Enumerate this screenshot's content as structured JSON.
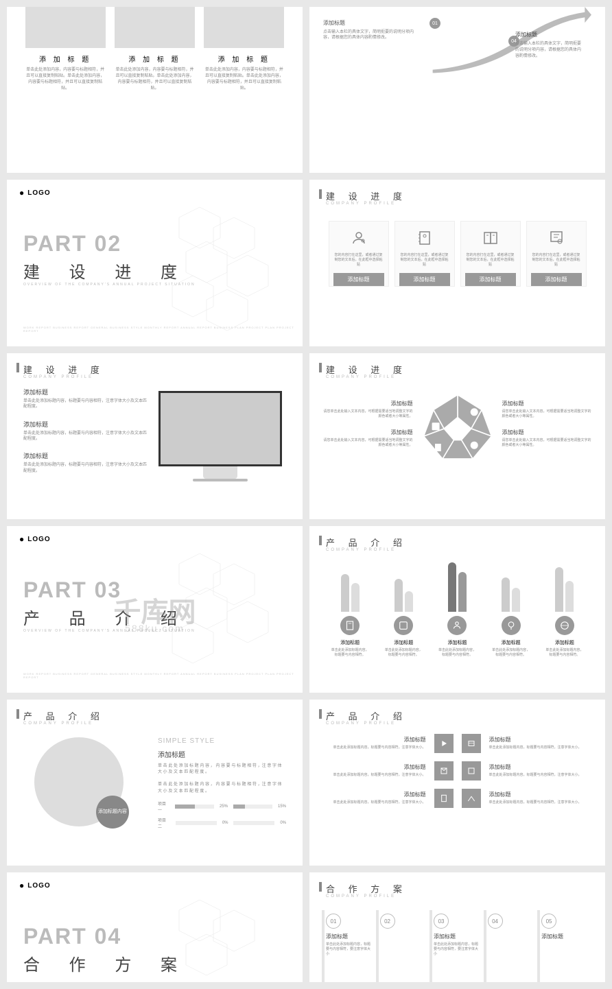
{
  "logo": "LOGO",
  "watermark": "千库网",
  "watermark_sub": "588ku.com",
  "colors": {
    "accent": "#999999",
    "text": "#444444",
    "muted": "#888888",
    "light": "#bbbbbb",
    "bg": "#ffffff"
  },
  "section": {
    "progress": {
      "title": "建 设 进 度",
      "sub": "COMPANY PROFILE"
    },
    "product": {
      "title": "产 品 介 绍",
      "sub": "COMPANY PROFILE"
    },
    "coop": {
      "title": "合 作 方 案",
      "sub": "COMPANY PROFILE"
    }
  },
  "part": {
    "p2": {
      "big": "PART 02",
      "cn": "建 设 进 度"
    },
    "p3": {
      "big": "PART 03",
      "cn": "产 品 介 绍"
    },
    "p4": {
      "big": "PART 04",
      "cn": "合 作 方 案"
    },
    "sub": "OVERVIEW OF THE COMPANY'S ANNUAL PROJECT SITUATION",
    "foot": "WORK REPORT BUSINESS REPORT GENERAL BUSINESS STYLE MONTHLY REPORT ANNUAL REPORT BUSINESS PLAN PROJECT PLAN PROJECT REPORT"
  },
  "s1": {
    "items": [
      {
        "t": "添 加 标 题",
        "d": "单击此处添加内容，内容要与标题相符，并且可以直接复制粘贴。单击此处添加内容，内容要与标题相符，并且可以直接复制粘贴。"
      },
      {
        "t": "添 加 标 题",
        "d": "单击此处添加内容，内容要与标题相符，并且可以直接复制粘贴。单击此处添加内容，内容要与标题相符，并且可以直接复制粘贴。"
      },
      {
        "t": "添 加 标 题",
        "d": "单击此处添加内容，内容要与标题相符，并且可以直接复制粘贴。单击此处添加内容，内容要与标题相符，并且可以直接复制粘贴。"
      }
    ]
  },
  "s2": {
    "left": {
      "t": "添加标题",
      "d": "点击输入本栏的具体文字，简明扼要的说明分项内容，请根据您的具体内容酌情修改。"
    },
    "items": [
      {
        "n": "01",
        "t": "添加标题",
        "d": "点击输入本栏的具体文字"
      },
      {
        "n": "04",
        "t": "添加标题",
        "d": "点击输入本栏的具体文字，简明扼要的说明分项内容，请根据您的具体内容酌情修改。"
      }
    ]
  },
  "s4": {
    "items": [
      {
        "t": "添加标题",
        "d": "您的内容打在这里，或者通过复制您的文本后，在此框中选择粘贴"
      },
      {
        "t": "添加标题",
        "d": "您的内容打在这里，或者通过复制您的文本后，在此框中选择粘贴"
      },
      {
        "t": "添加标题",
        "d": "您的内容打在这里，或者通过复制您的文本后，在此框中选择粘贴"
      },
      {
        "t": "添加标题",
        "d": "您的内容打在这里，或者通过复制您的文本后，在此框中选择粘贴"
      }
    ]
  },
  "s5": {
    "items": [
      {
        "t": "添加标题",
        "d": "单击此处添加标题内容，标题要与内容相符，注意字体大小及文本匹配程度。"
      },
      {
        "t": "添加标题",
        "d": "单击此处添加标题内容，标题要与内容相符，注意字体大小及文本匹配程度。"
      },
      {
        "t": "添加标题",
        "d": "单击此处添加标题内容，标题要与内容相符，注意字体大小及文本匹配程度。"
      }
    ]
  },
  "s6": {
    "items": [
      {
        "t": "添加标题",
        "d": "请您单击此处输入文本内容，可根据需要适当地调整文字的颜色或者大小等属性。"
      },
      {
        "t": "添加标题",
        "d": "请您单击此处输入文本内容，可根据需要适当地调整文字的颜色或者大小等属性。"
      },
      {
        "t": "添加标题",
        "d": "请您单击此处输入文本内容，可根据需要适当地调整文字的颜色或者大小等属性。"
      },
      {
        "t": "添加标题",
        "d": "请您单击此处输入文本内容，可根据需要适当地调整文字的颜色或者大小等属性。"
      }
    ]
  },
  "s8": {
    "items": [
      {
        "h1": 55,
        "h2": 42,
        "t": "添加标题",
        "d": "单击此处添加标题内容，标题要与内容相符。"
      },
      {
        "h1": 48,
        "h2": 30,
        "t": "添加标题",
        "d": "单击此处添加标题内容，标题要与内容相符。"
      },
      {
        "h1": 72,
        "h2": 58,
        "t": "添加标题",
        "d": "单击此处添加标题内容，标题要与内容相符。"
      },
      {
        "h1": 50,
        "h2": 35,
        "t": "添加标题",
        "d": "单击此处添加标题内容，标题要与内容相符。"
      },
      {
        "h1": 65,
        "h2": 45,
        "t": "添加标题",
        "d": "单击此处添加标题内容，标题要与内容相符。"
      }
    ]
  },
  "s9": {
    "style": "SIMPLE STYLE",
    "badge": "添加标题内容",
    "t": "添加标题",
    "d1": "单 击 此 处 添 加 标 题 内 容 ， 内 容 要 与 标 题 相 符 ，注 意 字 体 大 小 及 文 本 匹 配 程 度 。",
    "d2": "单 击 此 处 添 加 标 题 内 容 ， 内 容 要 与 标 题 相 符 ，注 意 字 体 大 小 及 文 本 匹 配 程 度 。",
    "bars": [
      {
        "label": "项目一",
        "v1": 25,
        "v2": 15,
        "t1": "25%",
        "t2": "15%"
      },
      {
        "label": "项目二",
        "v1": 0,
        "v2": 0,
        "t1": "0%",
        "t2": "0%"
      }
    ]
  },
  "s10": {
    "items": [
      {
        "t": "添加标题",
        "d": "单击此处添加标题内容，标题要与内容相符，注意字体大小。"
      },
      {
        "t": "添加标题",
        "d": "单击此处添加标题内容，标题要与内容相符，注意字体大小。"
      },
      {
        "t": "添加标题",
        "d": "单击此处添加标题内容，标题要与内容相符，注意字体大小。"
      },
      {
        "t": "添加标题",
        "d": "单击此处添加标题内容，标题要与内容相符，注意字体大小。"
      },
      {
        "t": "添加标题",
        "d": "单击此处添加标题内容，标题要与内容相符，注意字体大小。"
      },
      {
        "t": "添加标题",
        "d": "单击此处添加标题内容，标题要与内容相符，注意字体大小。"
      }
    ]
  },
  "s12": {
    "items": [
      {
        "n": "01",
        "t": "添加标题",
        "d": "单击此处添加标题内容，标题要与内容相符，要注意字体大小"
      },
      {
        "n": "02",
        "t": "",
        "d": ""
      },
      {
        "n": "03",
        "t": "添加标题",
        "d": "单击此处添加标题内容，标题要与内容相符，要注意字体大小"
      },
      {
        "n": "04",
        "t": "",
        "d": ""
      },
      {
        "n": "05",
        "t": "添加标题",
        "d": ""
      }
    ]
  }
}
